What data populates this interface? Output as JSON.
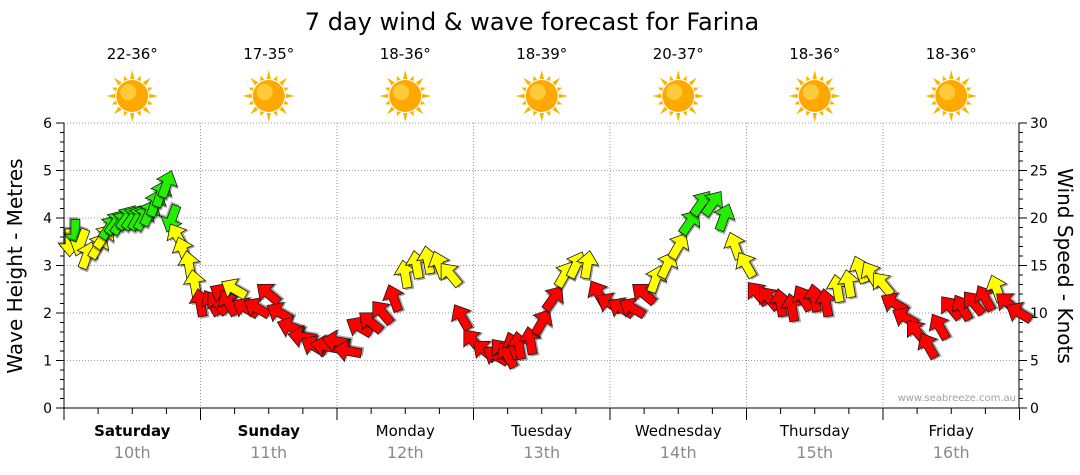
{
  "title": "7 day wind & wave forecast for Farina",
  "watermark": "www.seabreeze.com.au",
  "colors": {
    "green": "#22ee00",
    "yellow": "#ffff00",
    "red": "#ff0000",
    "sun_core": "#ffa800",
    "sun_ray": "#f7b500",
    "grid": "#9a9a9a",
    "axis": "#000000"
  },
  "chart_data": {
    "type": "line",
    "title": "7 day wind & wave forecast for Farina",
    "ylabel_left": "Wave Height - Metres",
    "ylabel_right": "Wind Speed - Knots",
    "y_left": {
      "min": 0,
      "max": 6,
      "ticks": [
        "0",
        "1",
        "2",
        "3",
        "4",
        "5",
        "6"
      ]
    },
    "y_right": {
      "min": 0,
      "max": 30,
      "ticks": [
        "0",
        "5",
        "10",
        "15",
        "20",
        "25",
        "30"
      ]
    },
    "grid": true,
    "days": [
      {
        "day": "Saturday",
        "date": "10th",
        "temp": "22-36°",
        "bold": true
      },
      {
        "day": "Sunday",
        "date": "11th",
        "temp": "17-35°",
        "bold": true
      },
      {
        "day": "Monday",
        "date": "12th",
        "temp": "18-36°",
        "bold": false
      },
      {
        "day": "Tuesday",
        "date": "13th",
        "temp": "18-39°",
        "bold": false
      },
      {
        "day": "Wednesday",
        "date": "14th",
        "temp": "20-37°",
        "bold": false
      },
      {
        "day": "Thursday",
        "date": "15th",
        "temp": "18-36°",
        "bold": false
      },
      {
        "day": "Friday",
        "date": "16th",
        "temp": "18-36°",
        "bold": false
      }
    ],
    "wind_series": {
      "unit": "knots",
      "x_unit": "hours from Saturday 00:00",
      "x": [
        1,
        2,
        3,
        4,
        6,
        7,
        8,
        9,
        10,
        11,
        12,
        13,
        14,
        15,
        16,
        17,
        18,
        19,
        20,
        21,
        22,
        23,
        24,
        26,
        27,
        28,
        29,
        30,
        32,
        34,
        36,
        38,
        40,
        42,
        44,
        46,
        48,
        50,
        52,
        54,
        56,
        58,
        60,
        62,
        64,
        66,
        68,
        70,
        72,
        74,
        76,
        77,
        78,
        79,
        80,
        82,
        84,
        86,
        88,
        90,
        92,
        94,
        96,
        98,
        100,
        102,
        104,
        106,
        108,
        110,
        112,
        114,
        116,
        118,
        120,
        122,
        124,
        126,
        128,
        130,
        132,
        134,
        136,
        138,
        140,
        142,
        144,
        146,
        148,
        150,
        152,
        154,
        156,
        158,
        160,
        162,
        164,
        166,
        168
      ],
      "speed": [
        17.5,
        18.5,
        17.5,
        16,
        17,
        18,
        19,
        19.5,
        19.5,
        20,
        20,
        20,
        20,
        20.5,
        21.5,
        22.5,
        23.5,
        20,
        18,
        16.5,
        15,
        13,
        11,
        11,
        11,
        12,
        11,
        12.5,
        10.5,
        10.5,
        12,
        10,
        8.5,
        7.5,
        6.5,
        6.5,
        7,
        6,
        8.5,
        9,
        10,
        11.5,
        14,
        15,
        15.5,
        15,
        14,
        9.5,
        7,
        6,
        5.5,
        6,
        5.5,
        6.5,
        6.5,
        7,
        9,
        11.5,
        14,
        15,
        15,
        12,
        11,
        10.5,
        10.5,
        12,
        13.5,
        15,
        17,
        19.5,
        21.5,
        21.5,
        20,
        17,
        15,
        12,
        11.5,
        11,
        10.5,
        11.5,
        11.5,
        11,
        12.5,
        13,
        14.5,
        14,
        13,
        11,
        9.5,
        8,
        6.5,
        8.5,
        10.5,
        10.5,
        11,
        11.5,
        12.5,
        11,
        10
      ],
      "direction_deg": [
        180,
        180,
        200,
        20,
        30,
        35,
        35,
        35,
        35,
        35,
        35,
        30,
        30,
        25,
        20,
        20,
        20,
        200,
        330,
        340,
        350,
        350,
        350,
        330,
        320,
        300,
        330,
        300,
        300,
        300,
        310,
        300,
        290,
        280,
        300,
        280,
        280,
        280,
        300,
        310,
        320,
        340,
        350,
        350,
        350,
        340,
        320,
        330,
        320,
        310,
        300,
        320,
        330,
        340,
        350,
        350,
        30,
        35,
        30,
        25,
        10,
        330,
        300,
        300,
        300,
        310,
        20,
        25,
        30,
        35,
        35,
        35,
        20,
        340,
        330,
        320,
        320,
        350,
        350,
        330,
        350,
        350,
        350,
        350,
        340,
        330,
        320,
        300,
        300,
        320,
        330,
        330,
        320,
        330,
        320,
        330,
        340,
        310,
        300
      ]
    },
    "wind_color_bands": [
      {
        "label": "green",
        "from_knots": 18.5
      },
      {
        "label": "yellow",
        "from_knots": 12.5
      },
      {
        "label": "red",
        "from_knots": 0
      }
    ]
  }
}
